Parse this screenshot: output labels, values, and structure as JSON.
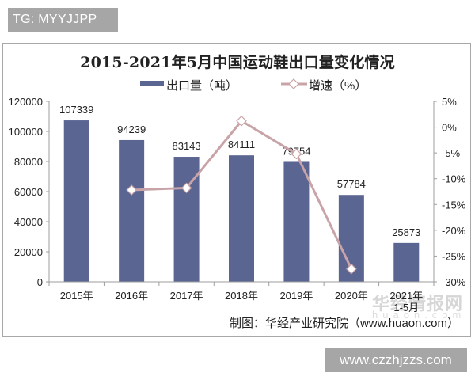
{
  "badge": {
    "text": "TG: MYYJJPP"
  },
  "footer_badge": {
    "text": "www.czzhjzzs.com"
  },
  "source": {
    "text": "制图：华经产业研究院（www.huaon.com）"
  },
  "watermark": {
    "main": "华经情报网",
    "sub": "huaon.com"
  },
  "colors": {
    "bar": "#5b6591",
    "line": "#c8a4a8",
    "marker_fill": "#ffffff",
    "axis": "#9e9e9e",
    "text": "#222222"
  },
  "chart_data": {
    "type": "bar+line",
    "title": "2015-2021年5月中国运动鞋出口量变化情况",
    "categories": [
      "2015年",
      "2016年",
      "2017年",
      "2018年",
      "2019年",
      "2020年",
      "2021年\n1-5月"
    ],
    "series": [
      {
        "name": "出口量（吨）",
        "type": "bar",
        "axis": "left",
        "values": [
          107339,
          94239,
          83143,
          84111,
          79754,
          57784,
          25873
        ],
        "labels": [
          "107339",
          "94239",
          "83143",
          "84111",
          "79754",
          "57784",
          "25873"
        ]
      },
      {
        "name": "增速（%）",
        "type": "line",
        "axis": "right",
        "values": [
          null,
          -12.2,
          -11.8,
          1.2,
          -5.2,
          -27.5,
          null
        ]
      }
    ],
    "left_axis": {
      "min": 0,
      "max": 120000,
      "ticks": [
        "120000",
        "100000",
        "80000",
        "60000",
        "40000",
        "20000",
        "0"
      ]
    },
    "right_axis": {
      "min": -30,
      "max": 5,
      "ticks": [
        "5%",
        "0%",
        "-5%",
        "-10%",
        "-15%",
        "-20%",
        "-25%",
        "-30%"
      ]
    },
    "legend": {
      "position": "top",
      "entries": [
        "出口量（吨）",
        "增速（%）"
      ]
    },
    "grid": false
  }
}
